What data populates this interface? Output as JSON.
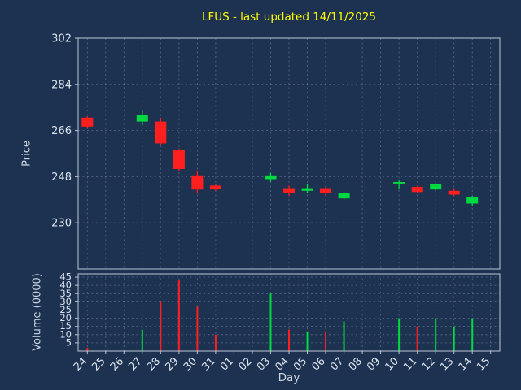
{
  "colors": {
    "background": "#1d3150",
    "title": "#ffff00",
    "up": "#00d93f",
    "down": "#ff1f1f",
    "grid": "#94a3b8",
    "axis": "#bcc6d4",
    "text": "#dbe2ec"
  },
  "chart_data": {
    "type": "candlestick+volume",
    "title": "LFUS - last updated 14/11/2025",
    "xlabel": "Day",
    "price_axis": {
      "label": "Price",
      "ticks": [
        302,
        284,
        266,
        248,
        230
      ],
      "ylim": [
        212,
        302
      ]
    },
    "volume_axis": {
      "label": "Volume (0000)",
      "ticks": [
        45,
        40,
        35,
        30,
        25,
        20,
        15,
        10,
        5
      ],
      "ylim": [
        0,
        47
      ]
    },
    "x_ticks": [
      "24",
      "25",
      "26",
      "27",
      "28",
      "29",
      "30",
      "31",
      "01",
      "02",
      "03",
      "04",
      "05",
      "06",
      "07",
      "08",
      "09",
      "10",
      "11",
      "12",
      "13",
      "14",
      "15"
    ],
    "grid": "dashed",
    "candles": [
      {
        "day": "24",
        "open": 271.0,
        "high": 271.5,
        "low": 267.0,
        "close": 267.5,
        "volume": 2,
        "dir": "down"
      },
      {
        "day": "27",
        "open": 269.5,
        "high": 274.0,
        "low": 268.0,
        "close": 272.0,
        "volume": 13,
        "dir": "up"
      },
      {
        "day": "28",
        "open": 269.5,
        "high": 271.0,
        "low": 260.5,
        "close": 261.0,
        "volume": 30,
        "dir": "down"
      },
      {
        "day": "29",
        "open": 258.5,
        "high": 259.0,
        "low": 250.0,
        "close": 251.0,
        "volume": 43,
        "dir": "down"
      },
      {
        "day": "30",
        "open": 248.5,
        "high": 250.0,
        "low": 241.5,
        "close": 243.0,
        "volume": 27,
        "dir": "down"
      },
      {
        "day": "31",
        "open": 244.5,
        "high": 245.0,
        "low": 242.5,
        "close": 243.0,
        "volume": 10,
        "dir": "down"
      },
      {
        "day": "03",
        "open": 247.0,
        "high": 249.5,
        "low": 246.0,
        "close": 248.5,
        "volume": 35,
        "dir": "up"
      },
      {
        "day": "04",
        "open": 243.5,
        "high": 244.5,
        "low": 240.5,
        "close": 241.5,
        "volume": 13,
        "dir": "down"
      },
      {
        "day": "05",
        "open": 242.5,
        "high": 245.0,
        "low": 241.5,
        "close": 243.5,
        "volume": 12,
        "dir": "up"
      },
      {
        "day": "06",
        "open": 243.5,
        "high": 244.0,
        "low": 240.5,
        "close": 241.5,
        "volume": 12,
        "dir": "down"
      },
      {
        "day": "07",
        "open": 239.5,
        "high": 242.0,
        "low": 239.0,
        "close": 241.5,
        "volume": 18,
        "dir": "up"
      },
      {
        "day": "10",
        "open": 245.3,
        "high": 246.5,
        "low": 243.0,
        "close": 245.9,
        "volume": 20,
        "dir": "up"
      },
      {
        "day": "11",
        "open": 244.0,
        "high": 244.5,
        "low": 241.5,
        "close": 242.0,
        "volume": 15,
        "dir": "down"
      },
      {
        "day": "12",
        "open": 243.0,
        "high": 245.5,
        "low": 242.5,
        "close": 245.0,
        "volume": 20,
        "dir": "up"
      },
      {
        "day": "13",
        "open": 242.5,
        "high": 243.5,
        "low": 240.5,
        "close": 241.0,
        "volume": 15,
        "dir": "down",
        "vol_dir": "up"
      },
      {
        "day": "14",
        "open": 237.5,
        "high": 240.5,
        "low": 236.5,
        "close": 240.0,
        "volume": 20,
        "dir": "up"
      }
    ]
  }
}
